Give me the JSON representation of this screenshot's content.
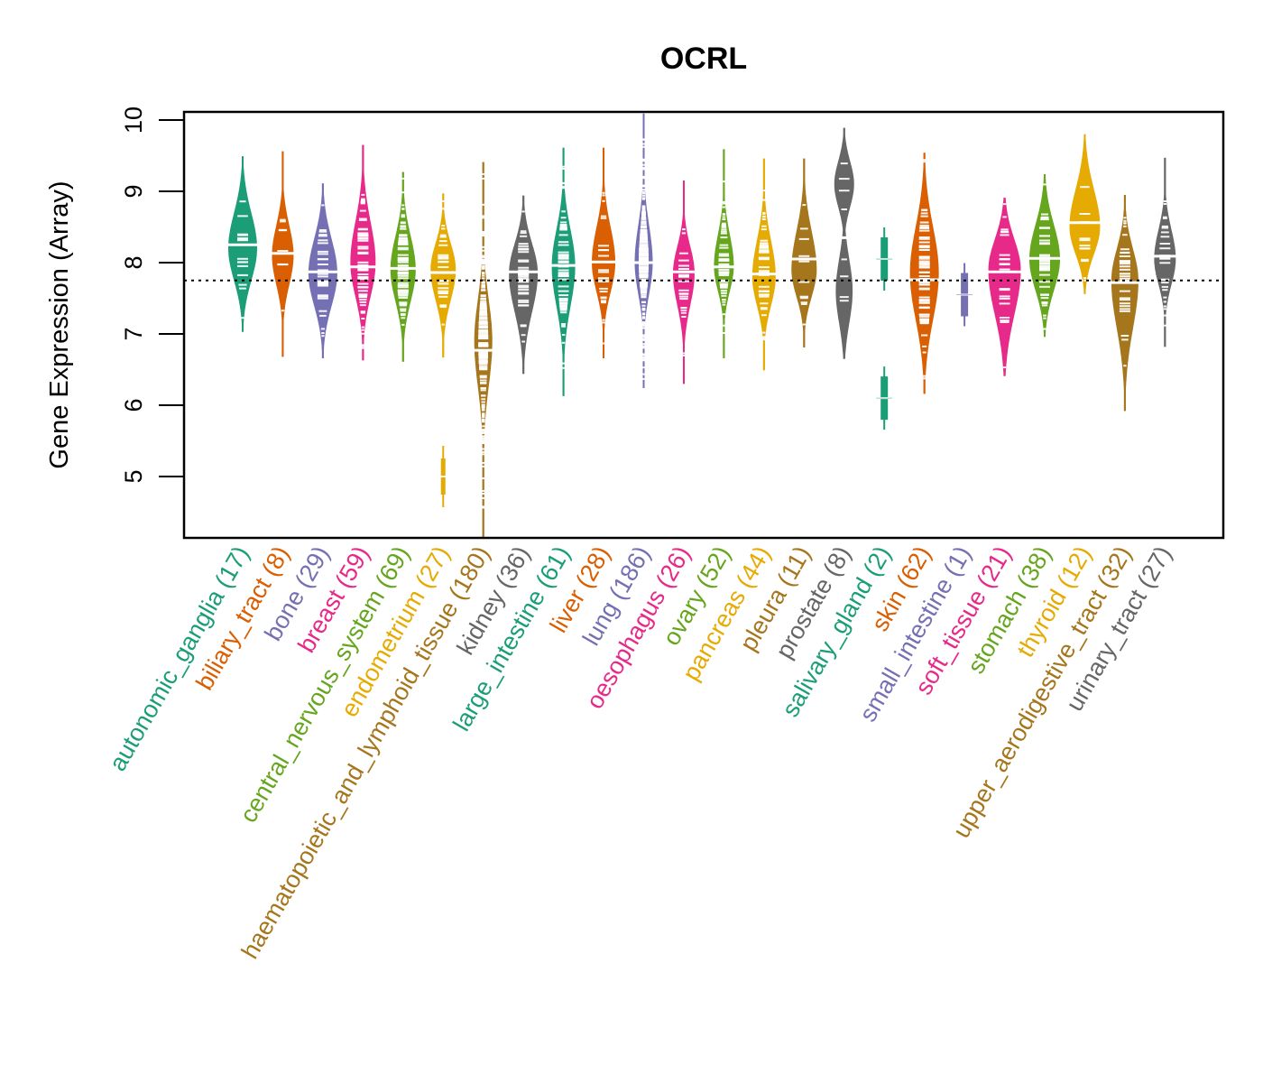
{
  "chart_data": {
    "type": "beanplot",
    "title": "OCRL",
    "xlabel": "",
    "ylabel": "Gene Expression (Array)",
    "ylim": [
      4.1,
      10.1
    ],
    "yticks": [
      5,
      6,
      7,
      8,
      9,
      10
    ],
    "reference_line": 7.75,
    "grid": false,
    "legend": "none",
    "categories": [
      {
        "name": "autonomic_ganglia",
        "n": 17,
        "color": "#1B9E77",
        "min": 7.03,
        "max": 9.49,
        "median": 8.25,
        "mode": 8.2,
        "spread": 1.0
      },
      {
        "name": "biliary_tract",
        "n": 8,
        "color": "#D95F02",
        "min": 6.68,
        "max": 9.56,
        "median": 8.13,
        "mode": 8.1,
        "spread": 0.75
      },
      {
        "name": "bone",
        "n": 29,
        "color": "#7570B3",
        "min": 6.66,
        "max": 9.11,
        "median": 7.87,
        "mode": 7.85,
        "spread": 1.0
      },
      {
        "name": "breast",
        "n": 59,
        "color": "#E7298A",
        "min": 6.63,
        "max": 9.65,
        "median": 7.94,
        "mode": 8.0,
        "spread": 0.9
      },
      {
        "name": "central_nervous_system",
        "n": 69,
        "color": "#66A61E",
        "min": 6.61,
        "max": 9.27,
        "median": 7.92,
        "mode": 7.9,
        "spread": 0.9
      },
      {
        "name": "endometrium",
        "n": 27,
        "color": "#E6AB02",
        "min": 6.67,
        "max": 8.97,
        "median": 7.86,
        "mode": 7.9,
        "spread": 0.9,
        "outliers": [
          5.0
        ]
      },
      {
        "name": "haematopoietic_and_lymphoid_tissue",
        "n": 180,
        "color": "#A6761D",
        "min": 4.14,
        "max": 9.41,
        "median": 6.77,
        "mode": 6.9,
        "spread": 0.6
      },
      {
        "name": "kidney",
        "n": 36,
        "color": "#666666",
        "min": 6.44,
        "max": 8.94,
        "median": 7.87,
        "mode": 7.85,
        "spread": 1.0
      },
      {
        "name": "large_intestine",
        "n": 61,
        "color": "#1B9E77",
        "min": 6.13,
        "max": 9.61,
        "median": 7.96,
        "mode": 7.95,
        "spread": 0.8
      },
      {
        "name": "liver",
        "n": 28,
        "color": "#D95F02",
        "min": 6.66,
        "max": 9.61,
        "median": 8.01,
        "mode": 8.0,
        "spread": 0.8
      },
      {
        "name": "lung",
        "n": 186,
        "color": "#7570B3",
        "min": 6.24,
        "max": 10.09,
        "median": 8.0,
        "mode": 8.0,
        "spread": 0.65
      },
      {
        "name": "oesophagus",
        "n": 26,
        "color": "#E7298A",
        "min": 6.3,
        "max": 9.15,
        "median": 7.87,
        "mode": 7.85,
        "spread": 0.75
      },
      {
        "name": "ovary",
        "n": 52,
        "color": "#66A61E",
        "min": 6.66,
        "max": 9.59,
        "median": 7.94,
        "mode": 7.95,
        "spread": 0.7
      },
      {
        "name": "pancreas",
        "n": 44,
        "color": "#E6AB02",
        "min": 6.49,
        "max": 9.46,
        "median": 7.84,
        "mode": 7.8,
        "spread": 0.8
      },
      {
        "name": "pleura",
        "n": 11,
        "color": "#A6761D",
        "min": 6.81,
        "max": 9.46,
        "median": 8.05,
        "mode": 7.9,
        "spread": 0.9
      },
      {
        "name": "prostate",
        "n": 8,
        "color": "#666666",
        "min": 6.65,
        "max": 9.89,
        "median": 8.35,
        "mode": 9.1,
        "spread": 0.75,
        "bimodal": [
          9.1,
          7.6
        ]
      },
      {
        "name": "salivary_gland",
        "n": 2,
        "color": "#1B9E77",
        "values": [
          8.05,
          6.1
        ]
      },
      {
        "name": "skin",
        "n": 62,
        "color": "#D95F02",
        "min": 6.16,
        "max": 9.54,
        "median": 7.76,
        "mode": 7.85,
        "spread": 1.0
      },
      {
        "name": "small_intestine",
        "n": 1,
        "color": "#7570B3",
        "values": [
          7.55
        ]
      },
      {
        "name": "soft_tissue",
        "n": 21,
        "color": "#E7298A",
        "min": 6.41,
        "max": 8.91,
        "median": 7.87,
        "mode": 7.9,
        "spread": 1.1
      },
      {
        "name": "stomach",
        "n": 38,
        "color": "#66A61E",
        "min": 6.96,
        "max": 9.24,
        "median": 8.06,
        "mode": 8.05,
        "spread": 1.05
      },
      {
        "name": "thyroid",
        "n": 12,
        "color": "#E6AB02",
        "min": 7.56,
        "max": 9.8,
        "median": 8.56,
        "mode": 8.5,
        "spread": 1.05
      },
      {
        "name": "upper_aerodigestive_tract",
        "n": 32,
        "color": "#A6761D",
        "min": 5.92,
        "max": 8.95,
        "median": 7.72,
        "mode": 7.75,
        "spread": 0.95
      },
      {
        "name": "urinary_tract",
        "n": 27,
        "color": "#666666",
        "min": 6.82,
        "max": 9.47,
        "median": 8.09,
        "mode": 8.05,
        "spread": 0.75
      }
    ]
  }
}
